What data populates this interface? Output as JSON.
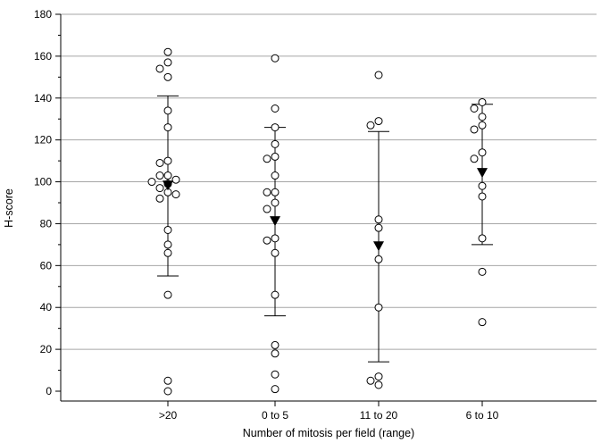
{
  "chart_data": {
    "type": "scatter",
    "subtype": "dot-plot-with-mean-and-sd",
    "xlabel": "Number of mitosis per field (range)",
    "ylabel": "H-score",
    "ylim": [
      0,
      180
    ],
    "yticks": [
      0,
      20,
      40,
      60,
      80,
      100,
      120,
      140,
      160,
      180
    ],
    "grid": "horizontal",
    "categories": [
      ">20",
      "0 to 5",
      "11 to 20",
      "6 to 10"
    ],
    "groups": [
      {
        "category": ">20",
        "mean": 98,
        "sd_low": 55,
        "sd_high": 141,
        "points": [
          162,
          157,
          154,
          150,
          134,
          126,
          110,
          109,
          103,
          103,
          101,
          100,
          99,
          97,
          95,
          94,
          92,
          77,
          70,
          66,
          46,
          5,
          0
        ]
      },
      {
        "category": "0 to 5",
        "mean": 81,
        "sd_low": 36,
        "sd_high": 126,
        "points": [
          159,
          135,
          126,
          118,
          112,
          111,
          103,
          95,
          95,
          90,
          87,
          73,
          72,
          66,
          46,
          22,
          18,
          8,
          1
        ]
      },
      {
        "category": "11 to 20",
        "mean": 69,
        "sd_low": 14,
        "sd_high": 124,
        "points": [
          151,
          129,
          127,
          82,
          78,
          63,
          40,
          7,
          5,
          3
        ]
      },
      {
        "category": "6 to 10",
        "mean": 104,
        "sd_low": 70,
        "sd_high": 137,
        "points": [
          138,
          135,
          131,
          127,
          125,
          114,
          111,
          98,
          93,
          73,
          57,
          33
        ]
      }
    ]
  }
}
